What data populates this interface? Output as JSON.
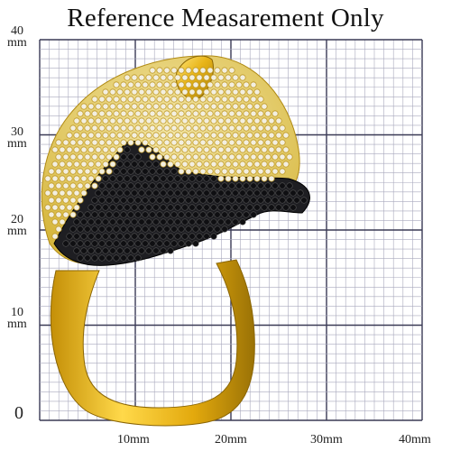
{
  "title": "Reference Measarement Only",
  "y_labels": [
    {
      "num": "40",
      "unit": "mm"
    },
    {
      "num": "30",
      "unit": "mm"
    },
    {
      "num": "20",
      "unit": "mm"
    },
    {
      "num": "10",
      "unit": "mm"
    },
    {
      "num": "0",
      "unit": ""
    }
  ],
  "x_labels": [
    "10mm",
    "20mm",
    "30mm",
    "40mm"
  ],
  "colors": {
    "grid_minor": "#a9a9bd",
    "grid_major": "#3a3a55",
    "gold": "#e8b418",
    "gold_light": "#ffe06a",
    "gold_dark": "#a77d08",
    "black_stone": "#1e1e22"
  },
  "subject": "gold-ring-with-pave-white-and-black-stones-animal-head"
}
